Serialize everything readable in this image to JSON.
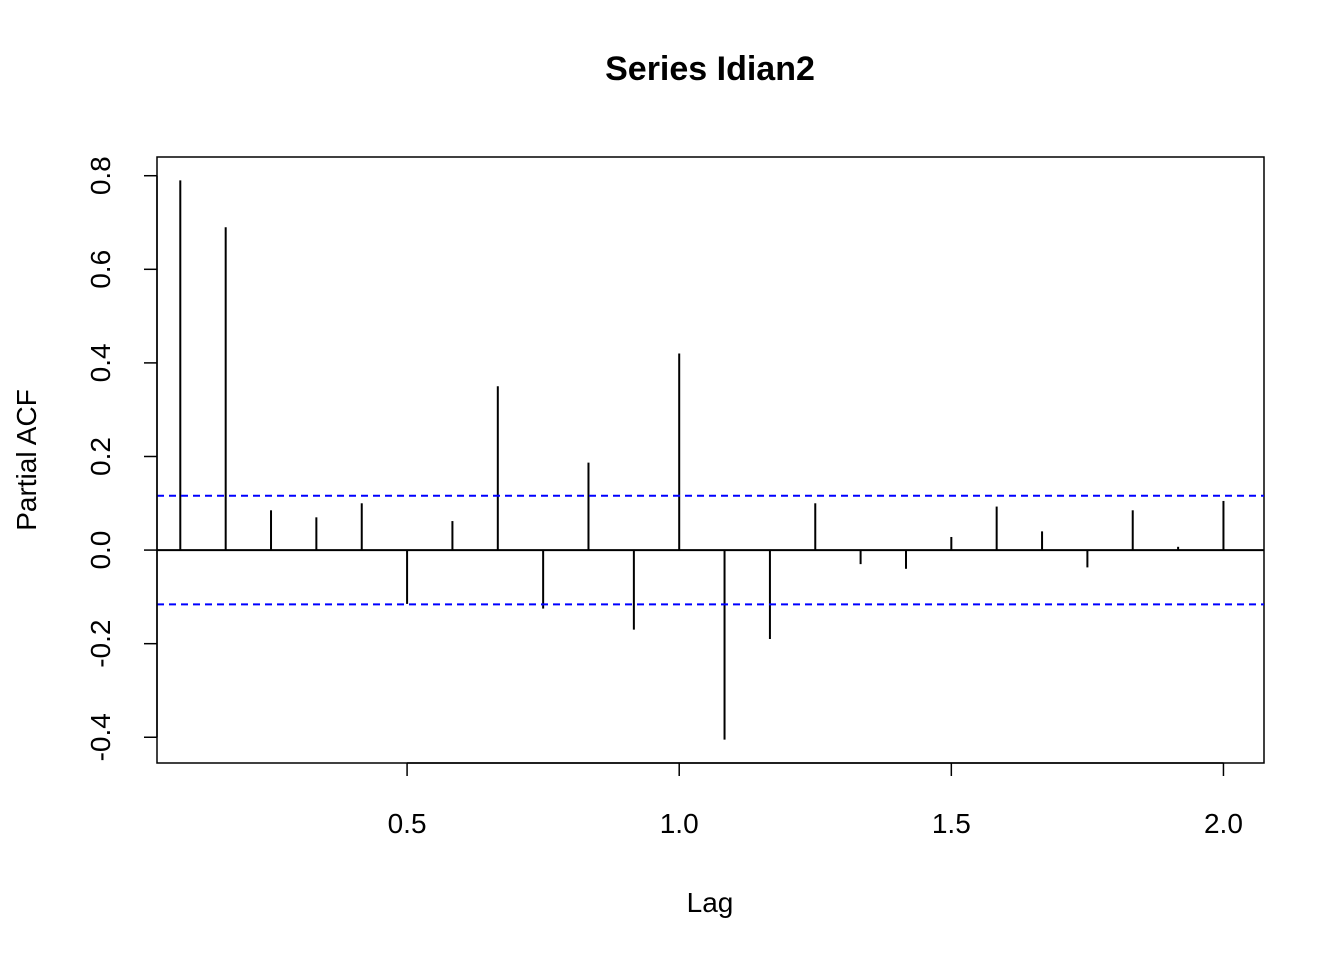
{
  "chart_data": {
    "type": "bar",
    "title": "Series  Idian2",
    "xlabel": "Lag",
    "ylabel": "Partial ACF",
    "xlim": [
      0.0405,
      2.0745
    ],
    "ylim": [
      -0.455,
      0.84
    ],
    "x_ticks": [
      0.5,
      1.0,
      1.5,
      2.0
    ],
    "x_tick_labels": [
      "0.5",
      "1.0",
      "1.5",
      "2.0"
    ],
    "y_ticks": [
      -0.4,
      -0.2,
      0.0,
      0.2,
      0.4,
      0.6,
      0.8
    ],
    "y_tick_labels": [
      "-0.4",
      "-0.2",
      "0.0",
      "0.2",
      "0.4",
      "0.6",
      "0.8"
    ],
    "lags": [
      0.0833,
      0.1667,
      0.25,
      0.3333,
      0.4167,
      0.5,
      0.5833,
      0.6667,
      0.75,
      0.8333,
      0.9167,
      1.0,
      1.0833,
      1.1667,
      1.25,
      1.3333,
      1.4167,
      1.5,
      1.5833,
      1.6667,
      1.75,
      1.8333,
      1.9167,
      2.0
    ],
    "values": [
      0.79,
      0.69,
      0.085,
      0.07,
      0.1,
      -0.115,
      0.062,
      0.35,
      -0.125,
      0.187,
      -0.17,
      0.42,
      -0.405,
      -0.19,
      0.1,
      -0.03,
      -0.04,
      0.028,
      0.093,
      0.04,
      -0.037,
      0.085,
      0.007,
      0.105
    ],
    "confidence_bound": 0.116,
    "colors": {
      "bars": "#000000",
      "zero_line": "#000000",
      "confidence_lines": "#0000ff",
      "frame": "#000000"
    },
    "grid": false
  }
}
